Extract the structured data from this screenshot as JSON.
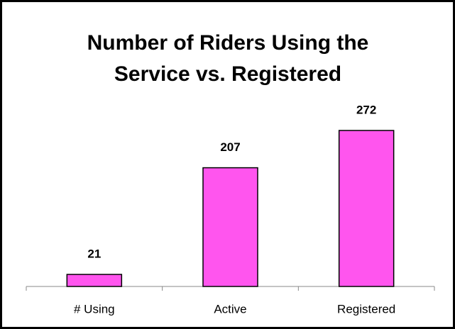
{
  "chart_data": {
    "type": "bar",
    "title": [
      "Number of Riders Using the",
      "Service vs.  Registered"
    ],
    "categories": [
      "# Using",
      "Active",
      "Registered"
    ],
    "values": [
      21,
      207,
      272
    ],
    "color": "#ff55ee"
  }
}
